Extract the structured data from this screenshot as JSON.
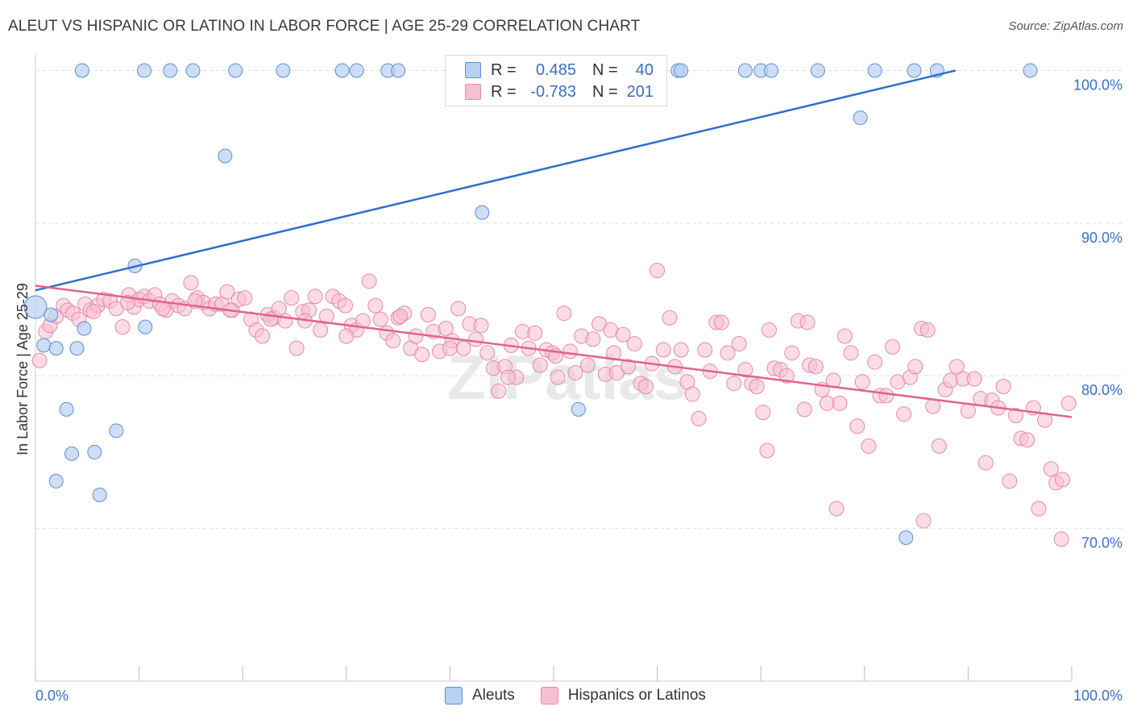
{
  "title": "ALEUT VS HISPANIC OR LATINO IN LABOR FORCE | AGE 25-29 CORRELATION CHART",
  "source": "Source: ZipAtlas.com",
  "watermark": "ZIPatlas",
  "legend": {
    "r_label": "R =",
    "n_label": "N =",
    "rows": [
      {
        "name": "Aleuts",
        "r": "0.485",
        "n": "40"
      },
      {
        "name": "Hispanics or Latinos",
        "r": "-0.783",
        "n": "201"
      }
    ]
  },
  "colors": {
    "aleut_fill": "#b8d0f2",
    "aleut_stroke": "#5d8fd8",
    "aleut_line": "#2f6ecb",
    "hisp_fill": "#f7c0d2",
    "hisp_stroke": "#e68aa8",
    "hisp_line": "#e0648c",
    "axis_text": "#3a6fc4"
  },
  "chart_data": {
    "type": "scatter",
    "title": "ALEUT VS HISPANIC OR LATINO IN LABOR FORCE | AGE 25-29 CORRELATION CHART",
    "xlabel": "",
    "ylabel": "In Labor Force | Age 25-29",
    "x_tick_labels": [
      "0.0%",
      "100.0%"
    ],
    "y_tick_labels": [
      "70.0%",
      "80.0%",
      "90.0%",
      "100.0%"
    ],
    "y_ticks": [
      70,
      80,
      90,
      100
    ],
    "xlim": [
      0,
      100
    ],
    "ylim": [
      60,
      100.5
    ],
    "grid": true,
    "legend_position": "top-center",
    "series": [
      {
        "name": "Aleuts",
        "regression": {
          "x": [
            0,
            88.8
          ],
          "y": [
            85.6,
            100
          ]
        },
        "points": [
          [
            0,
            84.5
          ],
          [
            0.8,
            82
          ],
          [
            2,
            73.1
          ],
          [
            1.5,
            84
          ],
          [
            2,
            81.8
          ],
          [
            3,
            77.8
          ],
          [
            3.5,
            74.9
          ],
          [
            4,
            81.8
          ],
          [
            4.5,
            100
          ],
          [
            4.7,
            83.1
          ],
          [
            5.7,
            75
          ],
          [
            6.2,
            72.2
          ],
          [
            7.8,
            76.4
          ],
          [
            9.6,
            87.2
          ],
          [
            10.5,
            100
          ],
          [
            10.6,
            83.2
          ],
          [
            13,
            100
          ],
          [
            15.2,
            100
          ],
          [
            18.3,
            94.4
          ],
          [
            19.3,
            100
          ],
          [
            23.9,
            100
          ],
          [
            29.6,
            100
          ],
          [
            31,
            100
          ],
          [
            34,
            100
          ],
          [
            35,
            100
          ],
          [
            43.1,
            90.7
          ],
          [
            52.4,
            77.8
          ],
          [
            62,
            100
          ],
          [
            62.3,
            100
          ],
          [
            68.5,
            100
          ],
          [
            70,
            100
          ],
          [
            71,
            100
          ],
          [
            75.5,
            100
          ],
          [
            79.6,
            96.9
          ],
          [
            81,
            100
          ],
          [
            84,
            69.4
          ],
          [
            84.8,
            100
          ],
          [
            87,
            100
          ],
          [
            96,
            100
          ]
        ]
      },
      {
        "name": "Hispanics or Latinos",
        "regression": {
          "x": [
            0,
            100
          ],
          "y": [
            85.9,
            77.3
          ]
        },
        "points": [
          [
            0.4,
            81
          ],
          [
            1,
            82.9
          ],
          [
            1.4,
            83.3
          ],
          [
            2,
            83.9
          ],
          [
            2.7,
            84.6
          ],
          [
            3.1,
            84.3
          ],
          [
            3.6,
            84.1
          ],
          [
            4.2,
            83.7
          ],
          [
            4.8,
            84.7
          ],
          [
            5.3,
            84.3
          ],
          [
            6,
            84.6
          ],
          [
            6.6,
            85
          ],
          [
            7.2,
            84.9
          ],
          [
            7.8,
            84.4
          ],
          [
            8.4,
            83.2
          ],
          [
            9,
            85.3
          ],
          [
            9.5,
            84.5
          ],
          [
            10,
            85
          ],
          [
            10.5,
            85.2
          ],
          [
            11,
            84.9
          ],
          [
            11.5,
            85.3
          ],
          [
            12,
            84.7
          ],
          [
            12.6,
            84.3
          ],
          [
            13.2,
            84.9
          ],
          [
            13.8,
            84.6
          ],
          [
            14.4,
            84.4
          ],
          [
            15,
            86.1
          ],
          [
            15.6,
            85.1
          ],
          [
            16.2,
            84.8
          ],
          [
            16.8,
            84.4
          ],
          [
            17.4,
            84.7
          ],
          [
            18,
            84.7
          ],
          [
            18.5,
            85.5
          ],
          [
            19,
            84.3
          ],
          [
            19.6,
            85
          ],
          [
            20.2,
            85.1
          ],
          [
            20.8,
            83.7
          ],
          [
            21.3,
            83
          ],
          [
            21.9,
            82.6
          ],
          [
            22.4,
            84
          ],
          [
            23,
            83.8
          ],
          [
            23.5,
            84.4
          ],
          [
            24.1,
            83.6
          ],
          [
            24.7,
            85.1
          ],
          [
            25.2,
            81.8
          ],
          [
            25.8,
            84.2
          ],
          [
            26.4,
            84.3
          ],
          [
            27,
            85.2
          ],
          [
            27.5,
            83
          ],
          [
            28.1,
            83.9
          ],
          [
            28.7,
            85.2
          ],
          [
            29.3,
            84.9
          ],
          [
            29.9,
            84.6
          ],
          [
            30.5,
            83.3
          ],
          [
            31,
            83
          ],
          [
            31.6,
            83.6
          ],
          [
            32.2,
            86.2
          ],
          [
            32.8,
            84.6
          ],
          [
            33.3,
            83.7
          ],
          [
            33.9,
            82.8
          ],
          [
            34.5,
            82.3
          ],
          [
            35,
            83.8
          ],
          [
            35.6,
            84.1
          ],
          [
            36.2,
            81.8
          ],
          [
            36.7,
            82.6
          ],
          [
            37.3,
            81.4
          ],
          [
            37.9,
            84
          ],
          [
            38.4,
            82.9
          ],
          [
            39,
            81.6
          ],
          [
            39.6,
            83.1
          ],
          [
            40.2,
            82.3
          ],
          [
            40.8,
            84.4
          ],
          [
            41.3,
            81.8
          ],
          [
            41.9,
            83.4
          ],
          [
            42.5,
            82.4
          ],
          [
            43,
            83.3
          ],
          [
            43.6,
            81.5
          ],
          [
            44.2,
            80.5
          ],
          [
            44.7,
            79
          ],
          [
            45.3,
            80.6
          ],
          [
            45.9,
            82
          ],
          [
            46.4,
            79.9
          ],
          [
            47,
            82.9
          ],
          [
            47.6,
            81.8
          ],
          [
            48.2,
            82.8
          ],
          [
            48.7,
            80.7
          ],
          [
            49.3,
            81.7
          ],
          [
            49.9,
            81.5
          ],
          [
            50.4,
            79.9
          ],
          [
            51,
            84.1
          ],
          [
            51.6,
            81.6
          ],
          [
            52.1,
            80.2
          ],
          [
            52.7,
            82.6
          ],
          [
            53.3,
            80.7
          ],
          [
            53.8,
            82.4
          ],
          [
            54.4,
            83.4
          ],
          [
            55,
            80.1
          ],
          [
            55.5,
            83
          ],
          [
            56.1,
            80.2
          ],
          [
            56.7,
            82.7
          ],
          [
            57.2,
            80.6
          ],
          [
            57.8,
            82.1
          ],
          [
            58.4,
            79.5
          ],
          [
            58.9,
            79.3
          ],
          [
            59.5,
            80.8
          ],
          [
            60,
            86.9
          ],
          [
            60.6,
            81.7
          ],
          [
            61.2,
            83.8
          ],
          [
            61.7,
            80.6
          ],
          [
            62.3,
            81.7
          ],
          [
            62.9,
            79.6
          ],
          [
            63.4,
            78.8
          ],
          [
            64,
            77.2
          ],
          [
            64.6,
            81.7
          ],
          [
            65.1,
            80.3
          ],
          [
            65.7,
            83.5
          ],
          [
            66.2,
            83.5
          ],
          [
            66.8,
            81.5
          ],
          [
            67.4,
            79.5
          ],
          [
            67.9,
            82.1
          ],
          [
            68.5,
            80.4
          ],
          [
            69.1,
            79.5
          ],
          [
            69.6,
            79.3
          ],
          [
            70.2,
            77.6
          ],
          [
            70.8,
            83
          ],
          [
            71.3,
            80.5
          ],
          [
            71.9,
            80.4
          ],
          [
            72.5,
            80
          ],
          [
            73,
            81.5
          ],
          [
            73.6,
            83.6
          ],
          [
            74.2,
            77.8
          ],
          [
            74.7,
            80.7
          ],
          [
            75.3,
            80.6
          ],
          [
            75.9,
            79.1
          ],
          [
            76.4,
            78.2
          ],
          [
            77,
            79.7
          ],
          [
            77.6,
            78.2
          ],
          [
            78.1,
            82.6
          ],
          [
            78.7,
            81.5
          ],
          [
            79.3,
            76.7
          ],
          [
            79.8,
            79.6
          ],
          [
            80.4,
            75.4
          ],
          [
            81,
            80.9
          ],
          [
            81.5,
            78.7
          ],
          [
            82.1,
            78.7
          ],
          [
            82.7,
            81.9
          ],
          [
            83.2,
            79.6
          ],
          [
            83.8,
            77.5
          ],
          [
            84.4,
            79.9
          ],
          [
            84.9,
            80.6
          ],
          [
            85.5,
            83.1
          ],
          [
            86.1,
            83
          ],
          [
            86.6,
            78
          ],
          [
            87.2,
            75.4
          ],
          [
            87.8,
            79.1
          ],
          [
            88.3,
            79.7
          ],
          [
            88.9,
            80.6
          ],
          [
            89.5,
            79.8
          ],
          [
            90,
            77.7
          ],
          [
            90.6,
            79.8
          ],
          [
            91.2,
            78.5
          ],
          [
            91.7,
            74.3
          ],
          [
            92.3,
            78.4
          ],
          [
            92.9,
            77.9
          ],
          [
            93.4,
            79.3
          ],
          [
            94,
            73.1
          ],
          [
            94.6,
            77.4
          ],
          [
            95.1,
            75.9
          ],
          [
            95.7,
            75.8
          ],
          [
            96.3,
            77.9
          ],
          [
            96.8,
            71.3
          ],
          [
            97.4,
            77.1
          ],
          [
            98,
            73.9
          ],
          [
            98.5,
            73
          ],
          [
            99.1,
            73.2
          ],
          [
            99.7,
            78.2
          ],
          [
            99,
            69.3
          ],
          [
            85.7,
            70.5
          ],
          [
            77.3,
            71.3
          ],
          [
            74.5,
            83.5
          ],
          [
            70.6,
            75.1
          ],
          [
            55.8,
            81.5
          ],
          [
            50.2,
            81.3
          ],
          [
            45.6,
            79.9
          ],
          [
            40,
            81.8
          ],
          [
            35.2,
            83.9
          ],
          [
            30,
            82.6
          ],
          [
            26,
            83.6
          ],
          [
            22.7,
            83.7
          ],
          [
            18.8,
            84.3
          ],
          [
            15.4,
            84.9
          ],
          [
            12.3,
            84.4
          ],
          [
            8.9,
            84.8
          ],
          [
            5.6,
            84.2
          ]
        ]
      }
    ]
  }
}
